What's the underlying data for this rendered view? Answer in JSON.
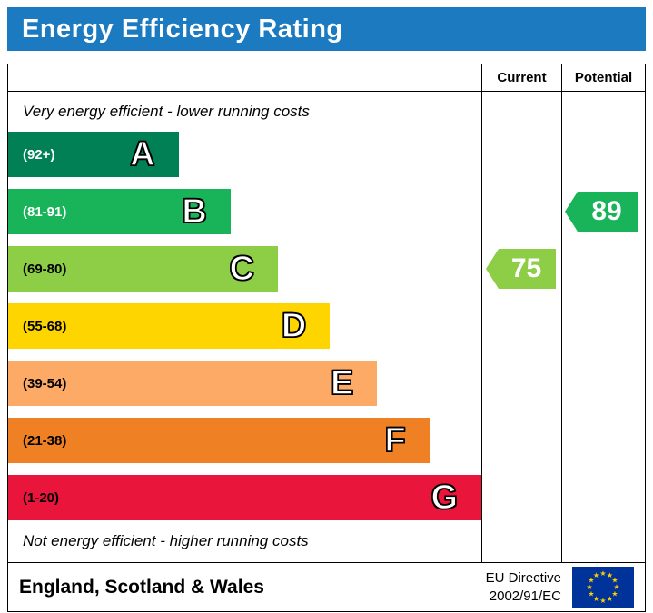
{
  "title": "Energy Efficiency Rating",
  "colors": {
    "header_bg": "#1c7ac1",
    "border": "#000000",
    "flag_blue": "#003399",
    "flag_star": "#ffcc00"
  },
  "columns": {
    "current": "Current",
    "potential": "Potential"
  },
  "notes": {
    "top": "Very energy efficient - lower running costs",
    "bottom": "Not energy efficient - higher running costs"
  },
  "bands": [
    {
      "letter": "A",
      "label": "(92+)",
      "color": "#008054",
      "label_color": "#ffffff",
      "width_pct": 36
    },
    {
      "letter": "B",
      "label": "(81-91)",
      "color": "#19b459",
      "label_color": "#ffffff",
      "width_pct": 47
    },
    {
      "letter": "C",
      "label": "(69-80)",
      "color": "#8dce46",
      "label_color": "#000000",
      "width_pct": 57
    },
    {
      "letter": "D",
      "label": "(55-68)",
      "color": "#ffd500",
      "label_color": "#000000",
      "width_pct": 68
    },
    {
      "letter": "E",
      "label": "(39-54)",
      "color": "#fcaa65",
      "label_color": "#000000",
      "width_pct": 78
    },
    {
      "letter": "F",
      "label": "(21-38)",
      "color": "#ef8023",
      "label_color": "#000000",
      "width_pct": 89
    },
    {
      "letter": "G",
      "label": "(1-20)",
      "color": "#e9153b",
      "label_color": "#000000",
      "width_pct": 100
    }
  ],
  "ratings": {
    "current": {
      "value": "75",
      "band": "C",
      "color": "#8dce46"
    },
    "potential": {
      "value": "89",
      "band": "B",
      "color": "#19b459"
    }
  },
  "footer": {
    "region": "England, Scotland & Wales",
    "directive_line1": "EU Directive",
    "directive_line2": "2002/91/EC"
  },
  "chart_data": {
    "type": "bar",
    "title": "Energy Efficiency Rating",
    "categories": [
      "A (92+)",
      "B (81-91)",
      "C (69-80)",
      "D (55-68)",
      "E (39-54)",
      "F (21-38)",
      "G (1-20)"
    ],
    "band_colors": [
      "#008054",
      "#19b459",
      "#8dce46",
      "#ffd500",
      "#fcaa65",
      "#ef8023",
      "#e9153b"
    ],
    "bar_width_pct": [
      36,
      47,
      57,
      68,
      78,
      89,
      100
    ],
    "series": [
      {
        "name": "Current",
        "value": 75,
        "band": "C"
      },
      {
        "name": "Potential",
        "value": 89,
        "band": "B"
      }
    ],
    "scale_min": 1,
    "scale_max": 100,
    "notes": [
      "Very energy efficient - lower running costs",
      "Not energy efficient - higher running costs"
    ],
    "region": "England, Scotland & Wales",
    "directive": "EU Directive 2002/91/EC"
  }
}
